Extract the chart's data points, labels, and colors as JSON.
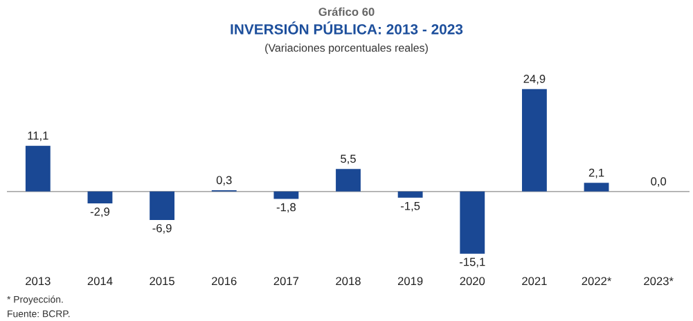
{
  "chart_data": {
    "type": "bar",
    "title": "INVERSIÓN PÚBLICA: 2013 - 2023",
    "subtitle": "(Variaciones porcentuales reales)",
    "annotations": [
      "Gráfico 60",
      "* Proyección.",
      "Fuente: BCRP."
    ],
    "categories": [
      "2013",
      "2014",
      "2015",
      "2016",
      "2017",
      "2018",
      "2019",
      "2020",
      "2021",
      "2022*",
      "2023*"
    ],
    "values": [
      11.1,
      -2.9,
      -6.9,
      0.3,
      -1.8,
      5.5,
      -1.5,
      -15.1,
      24.9,
      2.1,
      0.0
    ],
    "value_labels": [
      "11,1",
      "-2,9",
      "-6,9",
      "0,3",
      "-1,8",
      "5,5",
      "-1,5",
      "-15,1",
      "24,9",
      "2,1",
      "0,0"
    ],
    "color": "#1a4894",
    "grid": false,
    "legend": false
  }
}
